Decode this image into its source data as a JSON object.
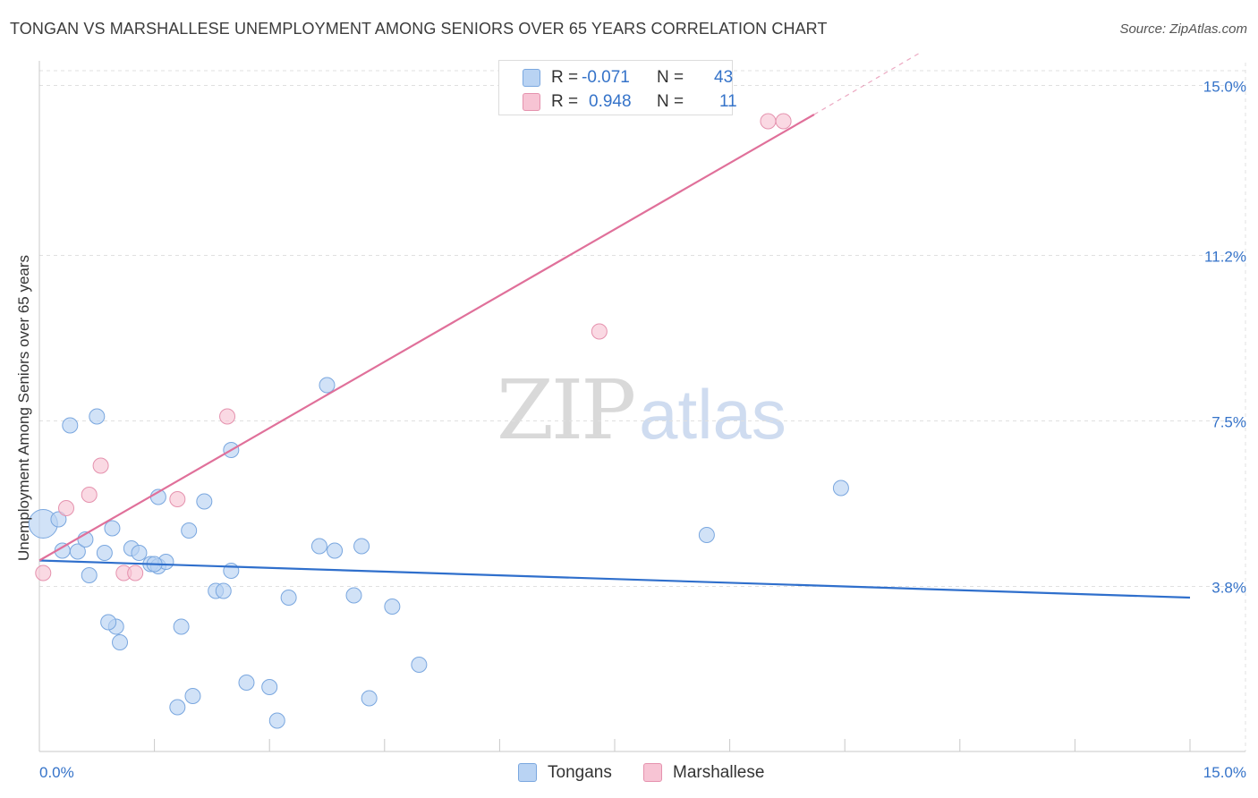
{
  "header": {
    "title": "TONGAN VS MARSHALLESE UNEMPLOYMENT AMONG SENIORS OVER 65 YEARS CORRELATION CHART",
    "source": "Source: ZipAtlas.com"
  },
  "watermark": {
    "zip": "ZIP",
    "atlas": "atlas"
  },
  "legend": {
    "rows": [
      {
        "r_label": "R =",
        "r_value": "-0.071",
        "n_label": "N =",
        "n_value": "43"
      },
      {
        "r_label": "R =",
        "r_value": "0.948",
        "n_label": "N =",
        "n_value": "11"
      }
    ]
  },
  "bottom_legend": [
    {
      "label": "Tongans"
    },
    {
      "label": "Marshallese"
    }
  ],
  "colors": {
    "tongans_fill": "#b9d3f3",
    "tongans_stroke": "#7aa7df",
    "tongans_line": "#2f6fcc",
    "marshallese_fill": "#f7c4d4",
    "marshallese_stroke": "#e592ae",
    "marshallese_line": "#e0709a",
    "axis_tick_label": "#3573c9",
    "grid": "#e0e0e0"
  },
  "chart_data": {
    "type": "scatter",
    "title": "TONGAN VS MARSHALLESE UNEMPLOYMENT AMONG SENIORS OVER 65 YEARS CORRELATION CHART",
    "xlabel": "",
    "ylabel": "Unemployment Among Seniors over 65 years",
    "xlim": [
      0,
      15
    ],
    "ylim": [
      0.15,
      15.35
    ],
    "x_tick_labels": [
      "0.0%",
      "15.0%"
    ],
    "y_ticks": [
      3.8,
      7.5,
      11.2,
      15.0
    ],
    "y_tick_labels": [
      "3.8%",
      "7.5%",
      "11.2%",
      "15.0%"
    ],
    "series": [
      {
        "name": "Tongans",
        "r": -0.071,
        "n": 43,
        "trend": {
          "x": [
            0,
            15
          ],
          "y": [
            4.38,
            3.55
          ]
        },
        "points": [
          {
            "x": 0.05,
            "y": 5.2,
            "big": true
          },
          {
            "x": 0.25,
            "y": 5.3
          },
          {
            "x": 0.4,
            "y": 7.4
          },
          {
            "x": 0.75,
            "y": 7.6
          },
          {
            "x": 0.3,
            "y": 4.6
          },
          {
            "x": 0.5,
            "y": 4.58
          },
          {
            "x": 0.6,
            "y": 4.85
          },
          {
            "x": 0.65,
            "y": 4.05
          },
          {
            "x": 0.85,
            "y": 4.55
          },
          {
            "x": 0.95,
            "y": 5.1
          },
          {
            "x": 1.2,
            "y": 4.65
          },
          {
            "x": 1.3,
            "y": 4.55
          },
          {
            "x": 1.45,
            "y": 4.3
          },
          {
            "x": 1.55,
            "y": 4.25
          },
          {
            "x": 1.65,
            "y": 4.35
          },
          {
            "x": 1.55,
            "y": 5.8
          },
          {
            "x": 1.95,
            "y": 5.05
          },
          {
            "x": 2.15,
            "y": 5.7
          },
          {
            "x": 2.5,
            "y": 6.85
          },
          {
            "x": 2.5,
            "y": 4.15
          },
          {
            "x": 2.3,
            "y": 3.7
          },
          {
            "x": 2.4,
            "y": 3.7
          },
          {
            "x": 1.0,
            "y": 2.9
          },
          {
            "x": 1.05,
            "y": 2.55
          },
          {
            "x": 1.85,
            "y": 2.9
          },
          {
            "x": 1.8,
            "y": 1.1
          },
          {
            "x": 2.0,
            "y": 1.35
          },
          {
            "x": 2.7,
            "y": 1.65
          },
          {
            "x": 3.0,
            "y": 1.55
          },
          {
            "x": 3.1,
            "y": 0.8
          },
          {
            "x": 3.25,
            "y": 3.55
          },
          {
            "x": 3.75,
            "y": 8.3
          },
          {
            "x": 3.65,
            "y": 4.7
          },
          {
            "x": 3.85,
            "y": 4.6
          },
          {
            "x": 4.2,
            "y": 4.7
          },
          {
            "x": 4.1,
            "y": 3.6
          },
          {
            "x": 4.6,
            "y": 3.35
          },
          {
            "x": 4.3,
            "y": 1.3
          },
          {
            "x": 4.95,
            "y": 2.05
          },
          {
            "x": 8.7,
            "y": 4.95
          },
          {
            "x": 10.45,
            "y": 6.0
          },
          {
            "x": 1.5,
            "y": 4.3
          },
          {
            "x": 0.9,
            "y": 3.0
          }
        ]
      },
      {
        "name": "Marshallese",
        "r": 0.948,
        "n": 11,
        "trend": {
          "x": [
            0,
            10.1
          ],
          "y": [
            4.38,
            14.35
          ]
        },
        "trend_extension": {
          "x": [
            10.1,
            11.5
          ],
          "y": [
            14.35,
            15.75
          ]
        },
        "points": [
          {
            "x": 0.05,
            "y": 4.1
          },
          {
            "x": 0.35,
            "y": 5.55
          },
          {
            "x": 0.65,
            "y": 5.85
          },
          {
            "x": 0.8,
            "y": 6.5
          },
          {
            "x": 1.1,
            "y": 4.1
          },
          {
            "x": 1.25,
            "y": 4.1
          },
          {
            "x": 1.8,
            "y": 5.75
          },
          {
            "x": 2.45,
            "y": 7.6
          },
          {
            "x": 7.3,
            "y": 9.5
          },
          {
            "x": 9.5,
            "y": 14.2
          },
          {
            "x": 9.7,
            "y": 14.2
          }
        ]
      }
    ]
  }
}
